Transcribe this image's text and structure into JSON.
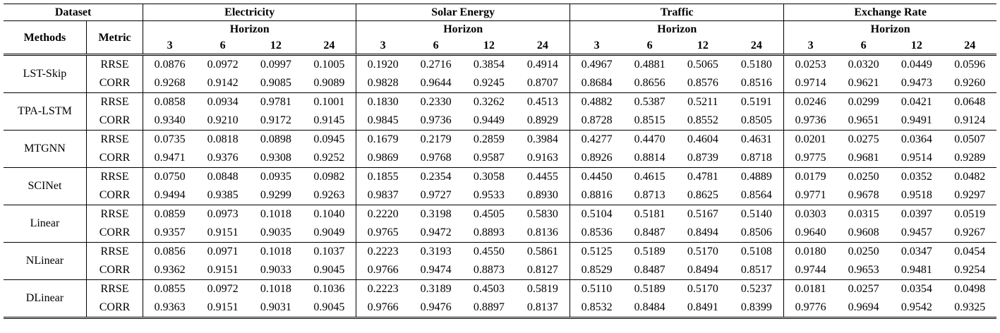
{
  "header": {
    "dataset_label": "Dataset",
    "methods_label": "Methods",
    "metric_label": "Metric",
    "horizon_label": "Horizon",
    "datasets": [
      "Electricity",
      "Solar Energy",
      "Traffic",
      "Exchange Rate"
    ],
    "horizons": [
      "3",
      "6",
      "12",
      "24"
    ]
  },
  "chart_data": {
    "type": "table",
    "columns": [
      "Electricity 3",
      "Electricity 6",
      "Electricity 12",
      "Electricity 24",
      "Solar Energy 3",
      "Solar Energy 6",
      "Solar Energy 12",
      "Solar Energy 24",
      "Traffic 3",
      "Traffic 6",
      "Traffic 12",
      "Traffic 24",
      "Exchange Rate 3",
      "Exchange Rate 6",
      "Exchange Rate 12",
      "Exchange Rate 24"
    ],
    "methods": [
      {
        "name": "LST-Skip",
        "rows": [
          {
            "metric": "RRSE",
            "values": [
              "0.0876",
              "0.0972",
              "0.0997",
              "0.1005",
              "0.1920",
              "0.2716",
              "0.3854",
              "0.4914",
              "0.4967",
              "0.4881",
              "0.5065",
              "0.5180",
              "0.0253",
              "0.0320",
              "0.0449",
              "0.0596"
            ]
          },
          {
            "metric": "CORR",
            "values": [
              "0.9268",
              "0.9142",
              "0.9085",
              "0.9089",
              "0.9828",
              "0.9644",
              "0.9245",
              "0.8707",
              "0.8684",
              "0.8656",
              "0.8576",
              "0.8516",
              "0.9714",
              "0.9621",
              "0.9473",
              "0.9260"
            ]
          }
        ]
      },
      {
        "name": "TPA-LSTM",
        "rows": [
          {
            "metric": "RRSE",
            "values": [
              "0.0858",
              "0.0934",
              "0.9781",
              "0.1001",
              "0.1830",
              "0.2330",
              "0.3262",
              "0.4513",
              "0.4882",
              "0.5387",
              "0.5211",
              "0.5191",
              "0.0246",
              "0.0299",
              "0.0421",
              "0.0648"
            ]
          },
          {
            "metric": "CORR",
            "values": [
              "0.9340",
              "0.9210",
              "0.9172",
              "0.9145",
              "0.9845",
              "0.9736",
              "0.9449",
              "0.8929",
              "0.8728",
              "0.8515",
              "0.8552",
              "0.8505",
              "0.9736",
              "0.9651",
              "0.9491",
              "0.9124"
            ]
          }
        ]
      },
      {
        "name": "MTGNN",
        "rows": [
          {
            "metric": "RRSE",
            "values": [
              "0.0735",
              "0.0818",
              "0.0898",
              "0.0945",
              "0.1679",
              "0.2179",
              "0.2859",
              "0.3984",
              "0.4277",
              "0.4470",
              "0.4604",
              "0.4631",
              "0.0201",
              "0.0275",
              "0.0364",
              "0.0507"
            ]
          },
          {
            "metric": "CORR",
            "values": [
              "0.9471",
              "0.9376",
              "0.9308",
              "0.9252",
              "0.9869",
              "0.9768",
              "0.9587",
              "0.9163",
              "0.8926",
              "0.8814",
              "0.8739",
              "0.8718",
              "0.9775",
              "0.9681",
              "0.9514",
              "0.9289"
            ]
          }
        ]
      },
      {
        "name": "SCINet",
        "rows": [
          {
            "metric": "RRSE",
            "values": [
              "0.0750",
              "0.0848",
              "0.0935",
              "0.0982",
              "0.1855",
              "0.2354",
              "0.3058",
              "0.4455",
              "0.4450",
              "0.4615",
              "0.4781",
              "0.4889",
              "0.0179",
              "0.0250",
              "0.0352",
              "0.0482"
            ]
          },
          {
            "metric": "CORR",
            "values": [
              "0.9494",
              "0.9385",
              "0.9299",
              "0.9263",
              "0.9837",
              "0.9727",
              "0.9533",
              "0.8930",
              "0.8816",
              "0.8713",
              "0.8625",
              "0.8564",
              "0.9771",
              "0.9678",
              "0.9518",
              "0.9297"
            ]
          }
        ]
      },
      {
        "name": "Linear",
        "rows": [
          {
            "metric": "RRSE",
            "values": [
              "0.0859",
              "0.0973",
              "0.1018",
              "0.1040",
              "0.2220",
              "0.3198",
              "0.4505",
              "0.5830",
              "0.5104",
              "0.5181",
              "0.5167",
              "0.5140",
              "0.0303",
              "0.0315",
              "0.0397",
              "0.0519"
            ]
          },
          {
            "metric": "CORR",
            "values": [
              "0.9357",
              "0.9151",
              "0.9035",
              "0.9049",
              "0.9765",
              "0.9472",
              "0.8893",
              "0.8136",
              "0.8536",
              "0.8487",
              "0.8494",
              "0.8506",
              "0.9640",
              "0.9608",
              "0.9457",
              "0.9267"
            ]
          }
        ]
      },
      {
        "name": "NLinear",
        "rows": [
          {
            "metric": "RRSE",
            "values": [
              "0.0856",
              "0.0971",
              "0.1018",
              "0.1037",
              "0.2223",
              "0.3193",
              "0.4550",
              "0.5861",
              "0.5125",
              "0.5189",
              "0.5170",
              "0.5108",
              "0.0180",
              "0.0250",
              "0.0347",
              "0.0454"
            ]
          },
          {
            "metric": "CORR",
            "values": [
              "0.9362",
              "0.9151",
              "0.9033",
              "0.9045",
              "0.9766",
              "0.9474",
              "0.8873",
              "0.8127",
              "0.8529",
              "0.8487",
              "0.8494",
              "0.8517",
              "0.9744",
              "0.9653",
              "0.9481",
              "0.9254"
            ]
          }
        ]
      },
      {
        "name": "DLinear",
        "rows": [
          {
            "metric": "RRSE",
            "values": [
              "0.0855",
              "0.0972",
              "0.1018",
              "0.1036",
              "0.2223",
              "0.3189",
              "0.4503",
              "0.5819",
              "0.5110",
              "0.5189",
              "0.5170",
              "0.5237",
              "0.0181",
              "0.0257",
              "0.0354",
              "0.0498"
            ]
          },
          {
            "metric": "CORR",
            "values": [
              "0.9363",
              "0.9151",
              "0.9031",
              "0.9045",
              "0.9766",
              "0.9476",
              "0.8897",
              "0.8137",
              "0.8532",
              "0.8484",
              "0.8491",
              "0.8399",
              "0.9776",
              "0.9694",
              "0.9542",
              "0.9325"
            ]
          }
        ]
      }
    ]
  }
}
